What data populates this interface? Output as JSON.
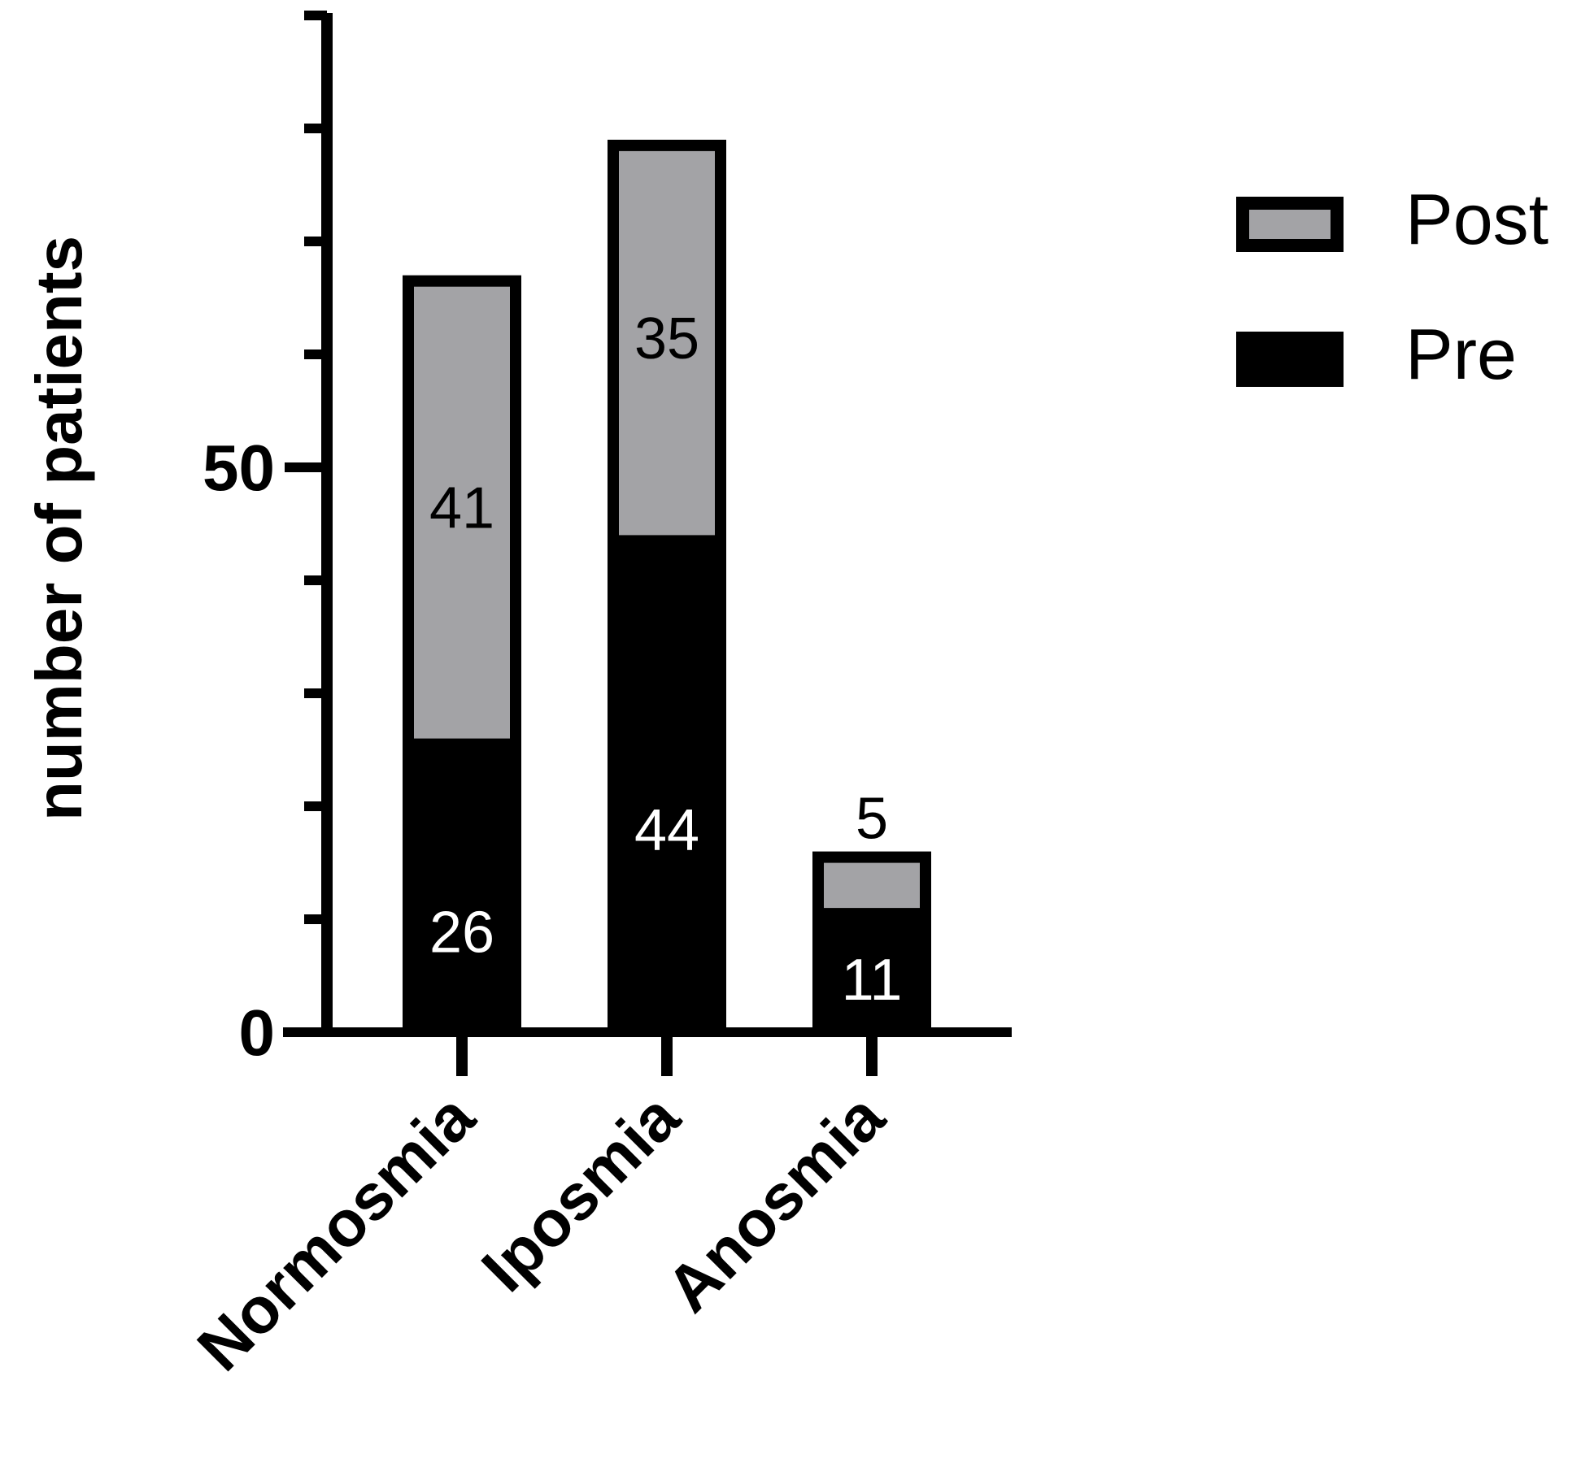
{
  "chart_data": {
    "type": "bar",
    "stacked": true,
    "title": "",
    "xlabel": "",
    "ylabel": "number of patients",
    "categories": [
      "Normosmia",
      "Iposmia",
      "Anosmia"
    ],
    "series": [
      {
        "name": "Pre",
        "values": [
          26,
          44,
          11
        ]
      },
      {
        "name": "Post",
        "values": [
          41,
          35,
          5
        ]
      }
    ],
    "ylim": [
      0,
      90
    ],
    "yticks_labeled": [
      0,
      50
    ],
    "yticks_minor_step": 10,
    "legend_position": "top-right",
    "legend": [
      {
        "name": "Post",
        "color": "#a3a3a6"
      },
      {
        "name": "Pre",
        "color": "#000000"
      }
    ],
    "colors": {
      "Pre": "#000000",
      "Post": "#a3a3a6",
      "outline": "#000000"
    }
  }
}
